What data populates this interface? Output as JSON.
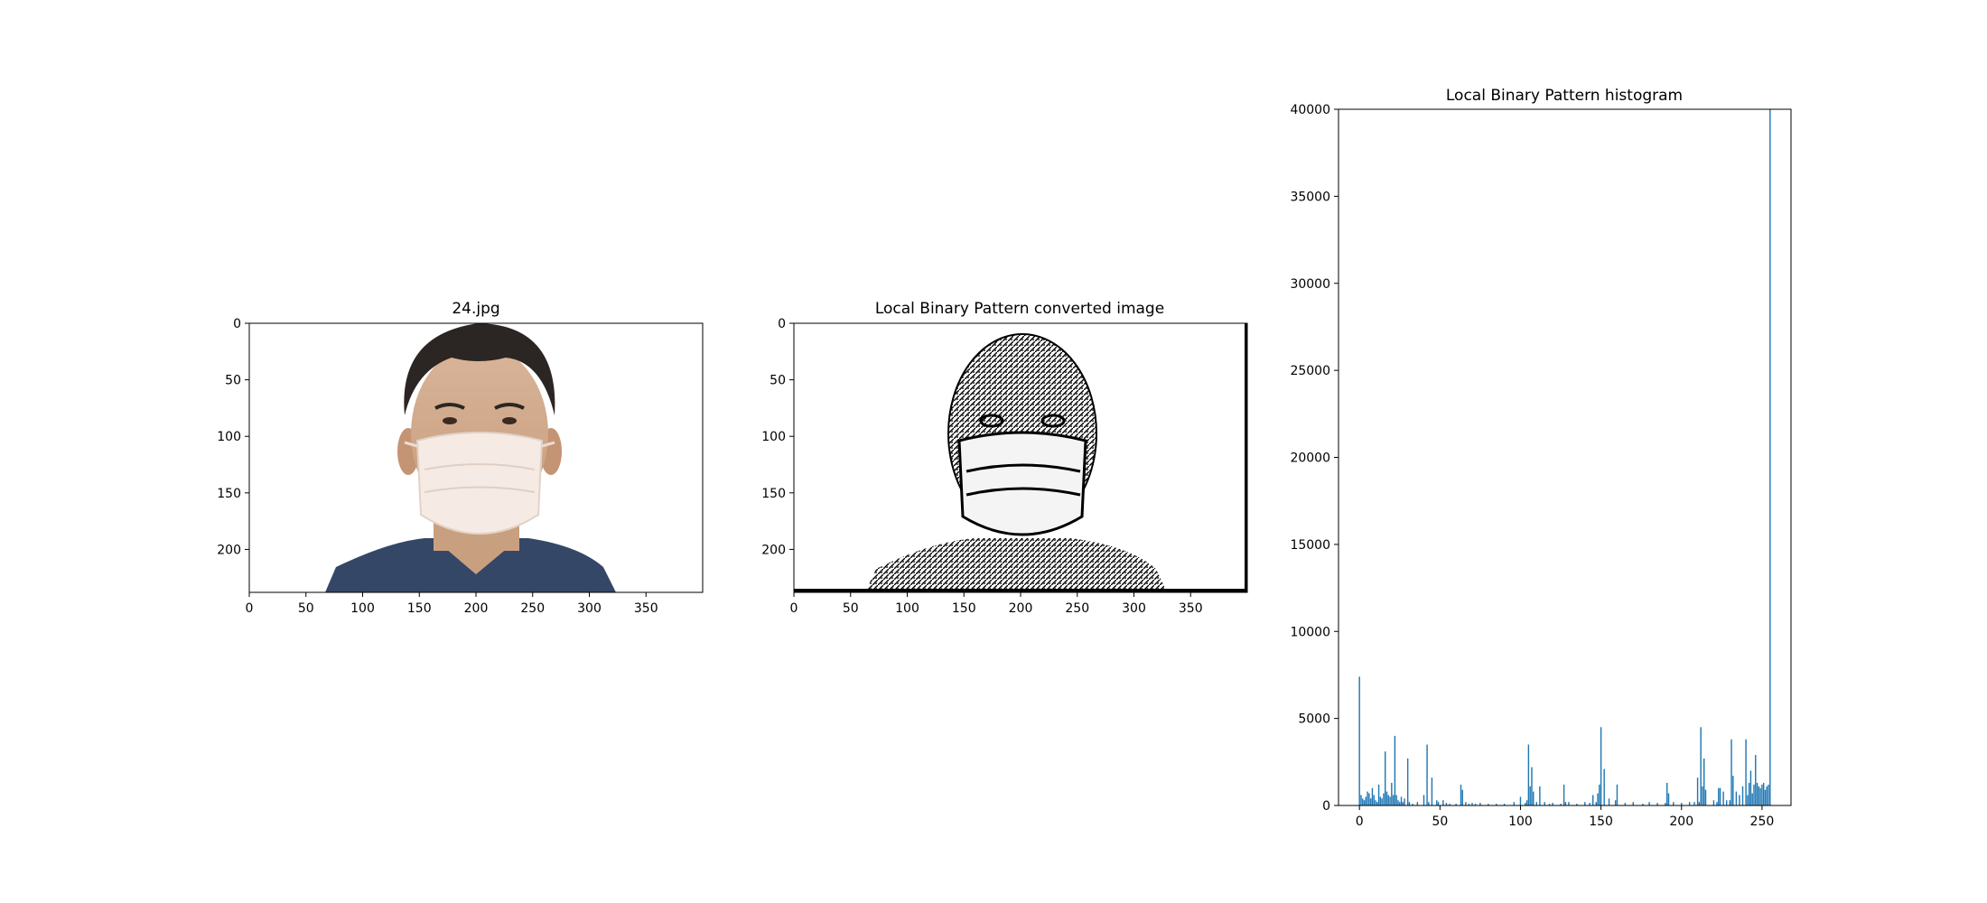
{
  "colors": {
    "bar": "#1f77b4",
    "axis": "#000000"
  },
  "panels": [
    {
      "title": "24.jpg",
      "x_ticks": [
        "0",
        "50",
        "100",
        "150",
        "200",
        "250",
        "300",
        "350"
      ],
      "y_ticks": [
        "0",
        "50",
        "100",
        "150",
        "200"
      ]
    },
    {
      "title": "Local Binary Pattern converted image",
      "x_ticks": [
        "0",
        "50",
        "100",
        "150",
        "200",
        "250",
        "300",
        "350"
      ],
      "y_ticks": [
        "0",
        "50",
        "100",
        "150",
        "200"
      ]
    }
  ],
  "chart_data": {
    "type": "bar",
    "title": "Local Binary Pattern histogram",
    "xlabel": "",
    "ylabel": "",
    "xlim": [
      -13,
      268
    ],
    "ylim": [
      0,
      40000
    ],
    "x_ticks": [
      "0",
      "50",
      "100",
      "150",
      "200",
      "250"
    ],
    "y_ticks": [
      "0",
      "5000",
      "10000",
      "15000",
      "20000",
      "25000",
      "30000",
      "35000",
      "40000"
    ],
    "grid": false,
    "legend": "none",
    "x": [
      0,
      1,
      2,
      3,
      4,
      5,
      6,
      7,
      8,
      9,
      10,
      11,
      12,
      13,
      14,
      15,
      16,
      17,
      18,
      19,
      20,
      21,
      22,
      23,
      24,
      25,
      26,
      27,
      28,
      30,
      31,
      33,
      36,
      40,
      42,
      43,
      45,
      48,
      49,
      52,
      54,
      56,
      60,
      63,
      64,
      66,
      68,
      70,
      72,
      75,
      80,
      85,
      90,
      96,
      100,
      103,
      104,
      105,
      106,
      107,
      108,
      110,
      112,
      115,
      118,
      120,
      125,
      127,
      128,
      130,
      135,
      140,
      143,
      145,
      147,
      148,
      149,
      150,
      152,
      155,
      159,
      160,
      165,
      170,
      176,
      180,
      185,
      190,
      191,
      192,
      195,
      200,
      205,
      208,
      210,
      211,
      212,
      213,
      214,
      215,
      220,
      222,
      223,
      224,
      226,
      228,
      230,
      231,
      232,
      234,
      236,
      238,
      240,
      241,
      242,
      243,
      244,
      245,
      246,
      247,
      248,
      249,
      250,
      251,
      252,
      253,
      254,
      255
    ],
    "values": [
      7400,
      600,
      400,
      300,
      500,
      800,
      700,
      400,
      1000,
      600,
      300,
      200,
      1200,
      500,
      400,
      700,
      3100,
      800,
      600,
      500,
      1300,
      600,
      4000,
      600,
      300,
      200,
      500,
      200,
      400,
      2700,
      200,
      100,
      200,
      600,
      3500,
      200,
      1600,
      300,
      200,
      300,
      150,
      100,
      100,
      1200,
      900,
      200,
      100,
      150,
      100,
      150,
      100,
      100,
      100,
      200,
      500,
      150,
      300,
      3500,
      1100,
      2200,
      800,
      200,
      1100,
      200,
      100,
      150,
      100,
      1200,
      200,
      200,
      100,
      200,
      150,
      600,
      200,
      700,
      1200,
      4500,
      2100,
      400,
      300,
      1200,
      150,
      200,
      100,
      200,
      150,
      150,
      1300,
      700,
      200,
      150,
      200,
      200,
      1600,
      200,
      4500,
      1100,
      2700,
      900,
      300,
      200,
      1000,
      1000,
      800,
      300,
      300,
      3800,
      1700,
      800,
      600,
      1100,
      3800,
      600,
      1300,
      2000,
      700,
      1200,
      2900,
      1300,
      1100,
      1000,
      1200,
      1300,
      900,
      1100,
      1200,
      40000
    ]
  }
}
